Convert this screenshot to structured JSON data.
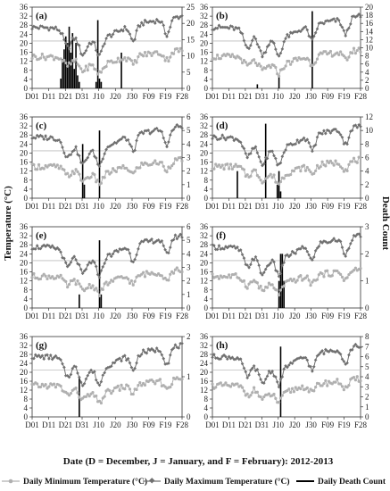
{
  "figure": {
    "y_left_title": "Temperature (°C)",
    "y_right_title": "Death Count",
    "x_title": "Date (D = December, J = January, and F = February): 2012-2013",
    "legend": [
      {
        "label": "Daily Minimum Temperature (°C)",
        "color": "#b0b0b0",
        "marker": "circle"
      },
      {
        "label": "Daily Maximum Temperature (°C)",
        "color": "#707070",
        "marker": "diamond"
      },
      {
        "label": "Daily Death Count",
        "color": "#000000",
        "marker": "bar"
      }
    ],
    "colors": {
      "min": "#b0b0b0",
      "max": "#707070",
      "deaths": "#000000",
      "threshold": "#bbbbbb"
    }
  },
  "chart_data": [
    {
      "type": "line",
      "panel": "(a)",
      "x_ticks": [
        "D01",
        "D11",
        "D21",
        "D31",
        "J10",
        "J20",
        "J30",
        "F09",
        "F19",
        "F28"
      ],
      "y_left_ticks": [
        0,
        4,
        8,
        12,
        16,
        20,
        24,
        28,
        32,
        36
      ],
      "y_right_ticks": [
        0,
        5,
        10,
        15,
        20,
        25
      ],
      "y_right_max": 25,
      "threshold": 21,
      "deaths": [
        {
          "day": 17,
          "count": 3
        },
        {
          "day": 18,
          "count": 9
        },
        {
          "day": 19,
          "count": 12
        },
        {
          "day": 20,
          "count": 16
        },
        {
          "day": 21,
          "count": 14
        },
        {
          "day": 22,
          "count": 19
        },
        {
          "day": 23,
          "count": 11
        },
        {
          "day": 24,
          "count": 17
        },
        {
          "day": 25,
          "count": 6
        },
        {
          "day": 26,
          "count": 14
        },
        {
          "day": 27,
          "count": 4
        },
        {
          "day": 28,
          "count": 2
        },
        {
          "day": 38,
          "count": 2
        },
        {
          "day": 39,
          "count": 21
        },
        {
          "day": 40,
          "count": 3
        },
        {
          "day": 41,
          "count": 2
        },
        {
          "day": 53,
          "count": 11
        }
      ]
    },
    {
      "type": "line",
      "panel": "(b)",
      "x_ticks": [
        "D01",
        "D11",
        "D21",
        "D31",
        "J10",
        "J20",
        "J30",
        "F09",
        "F19",
        "F28"
      ],
      "y_left_ticks": [
        0,
        4,
        8,
        12,
        16,
        20,
        24,
        28,
        32,
        36
      ],
      "y_right_ticks": [
        0,
        2,
        4,
        6,
        8,
        10,
        12,
        14,
        16,
        18,
        20
      ],
      "y_right_max": 20,
      "threshold": 21,
      "deaths": [
        {
          "day": 27,
          "count": 1
        },
        {
          "day": 40,
          "count": 3
        },
        {
          "day": 60,
          "count": 19
        }
      ]
    },
    {
      "type": "line",
      "panel": "(c)",
      "x_ticks": [
        "D01",
        "D11",
        "D21",
        "D31",
        "J10",
        "J20",
        "J30",
        "F09",
        "F19",
        "F28"
      ],
      "y_left_ticks": [
        0,
        4,
        8,
        12,
        16,
        20,
        24,
        28,
        32,
        36
      ],
      "y_right_ticks": [
        0,
        1,
        2,
        3,
        4,
        5,
        6
      ],
      "y_right_max": 6,
      "threshold": 21,
      "deaths": [
        {
          "day": 30,
          "count": 4
        },
        {
          "day": 31,
          "count": 1
        },
        {
          "day": 40,
          "count": 5
        }
      ]
    },
    {
      "type": "line",
      "panel": "(d)",
      "x_ticks": [
        "D01",
        "D11",
        "D21",
        "D31",
        "J10",
        "J20",
        "J30",
        "F09",
        "F19",
        "F28"
      ],
      "y_left_ticks": [
        0,
        4,
        8,
        12,
        16,
        20,
        24,
        28,
        32,
        36
      ],
      "y_right_ticks": [
        0,
        2,
        4,
        6,
        8,
        10,
        12
      ],
      "y_right_max": 12,
      "threshold": 21,
      "deaths": [
        {
          "day": 15,
          "count": 4
        },
        {
          "day": 32,
          "count": 11
        },
        {
          "day": 39,
          "count": 2
        },
        {
          "day": 40,
          "count": 4
        },
        {
          "day": 41,
          "count": 1
        }
      ]
    },
    {
      "type": "line",
      "panel": "(e)",
      "x_ticks": [
        "D01",
        "D11",
        "D21",
        "D31",
        "J10",
        "J20",
        "J30",
        "F09",
        "F19",
        "F28"
      ],
      "y_left_ticks": [
        0,
        4,
        8,
        12,
        16,
        20,
        24,
        28,
        32,
        36
      ],
      "y_right_ticks": [
        0,
        1,
        2,
        3,
        4,
        5,
        6
      ],
      "y_right_max": 6,
      "threshold": 21,
      "deaths": [
        {
          "day": 28,
          "count": 1
        },
        {
          "day": 40,
          "count": 5
        },
        {
          "day": 41,
          "count": 1
        }
      ]
    },
    {
      "type": "line",
      "panel": "(f)",
      "x_ticks": [
        "D01",
        "D11",
        "D21",
        "D31",
        "J10",
        "J20",
        "J30",
        "F09",
        "F19",
        "F28"
      ],
      "y_left_ticks": [
        0,
        4,
        8,
        12,
        16,
        20,
        24,
        28,
        32,
        36
      ],
      "y_right_ticks": [
        0,
        1,
        2,
        3
      ],
      "y_right_max": 3,
      "threshold": 21,
      "deaths": [
        {
          "day": 40,
          "count": 1
        },
        {
          "day": 41,
          "count": 2
        },
        {
          "day": 42,
          "count": 2
        },
        {
          "day": 43,
          "count": 1
        }
      ]
    },
    {
      "type": "line",
      "panel": "(g)",
      "x_ticks": [
        "D01",
        "D11",
        "D21",
        "D31",
        "J10",
        "J20",
        "J30",
        "F09",
        "F19",
        "F28"
      ],
      "y_left_ticks": [
        0,
        4,
        8,
        12,
        16,
        20,
        24,
        28,
        32,
        36
      ],
      "y_right_ticks": [
        0,
        1,
        2
      ],
      "y_right_max": 2,
      "threshold": 21,
      "deaths": [
        {
          "day": 28,
          "count": 1
        }
      ]
    },
    {
      "type": "line",
      "panel": "(h)",
      "x_ticks": [
        "D01",
        "D11",
        "D21",
        "D31",
        "J10",
        "J20",
        "J30",
        "F09",
        "F19",
        "F28"
      ],
      "y_left_ticks": [
        0,
        4,
        8,
        12,
        16,
        20,
        24,
        28,
        32,
        36
      ],
      "y_right_ticks": [
        0,
        1,
        2,
        3,
        4,
        5,
        6,
        7,
        8
      ],
      "y_right_max": 8,
      "threshold": 21,
      "deaths": [
        {
          "day": 41,
          "count": 7
        }
      ]
    }
  ]
}
